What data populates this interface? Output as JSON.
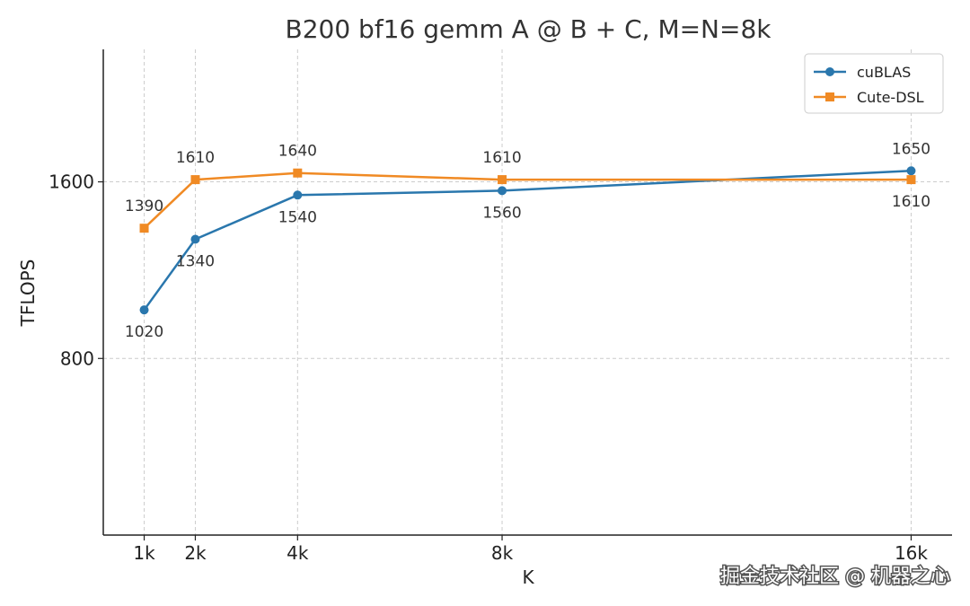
{
  "chart_data": {
    "type": "line",
    "title": "B200 bf16 gemm A @ B + C, M=N=8k",
    "xlabel": "K",
    "ylabel": "TFLOPS",
    "x": [
      1,
      2,
      4,
      8,
      16
    ],
    "x_tick_labels": [
      "1k",
      "2k",
      "4k",
      "8k",
      "16k"
    ],
    "xlim": [
      0.2,
      16.8
    ],
    "ylim": [
      0,
      2200
    ],
    "y_ticks": [
      800,
      1600
    ],
    "y_tick_labels": [
      "800",
      "1600"
    ],
    "grid": true,
    "legend_position": "top-right",
    "series": [
      {
        "name": "cuBLAS",
        "marker": "circle",
        "color": "#2a77ad",
        "values": [
          1020,
          1340,
          1540,
          1560,
          1650
        ],
        "label_positions": [
          "below",
          "below",
          "below",
          "below",
          "above"
        ]
      },
      {
        "name": "Cute-DSL",
        "marker": "square",
        "color": "#f08a24",
        "values": [
          1390,
          1610,
          1640,
          1610,
          1610
        ],
        "label_positions": [
          "above",
          "above",
          "above",
          "above",
          "below"
        ]
      }
    ]
  },
  "watermark": "掘金技术社区 @ 机器之心"
}
